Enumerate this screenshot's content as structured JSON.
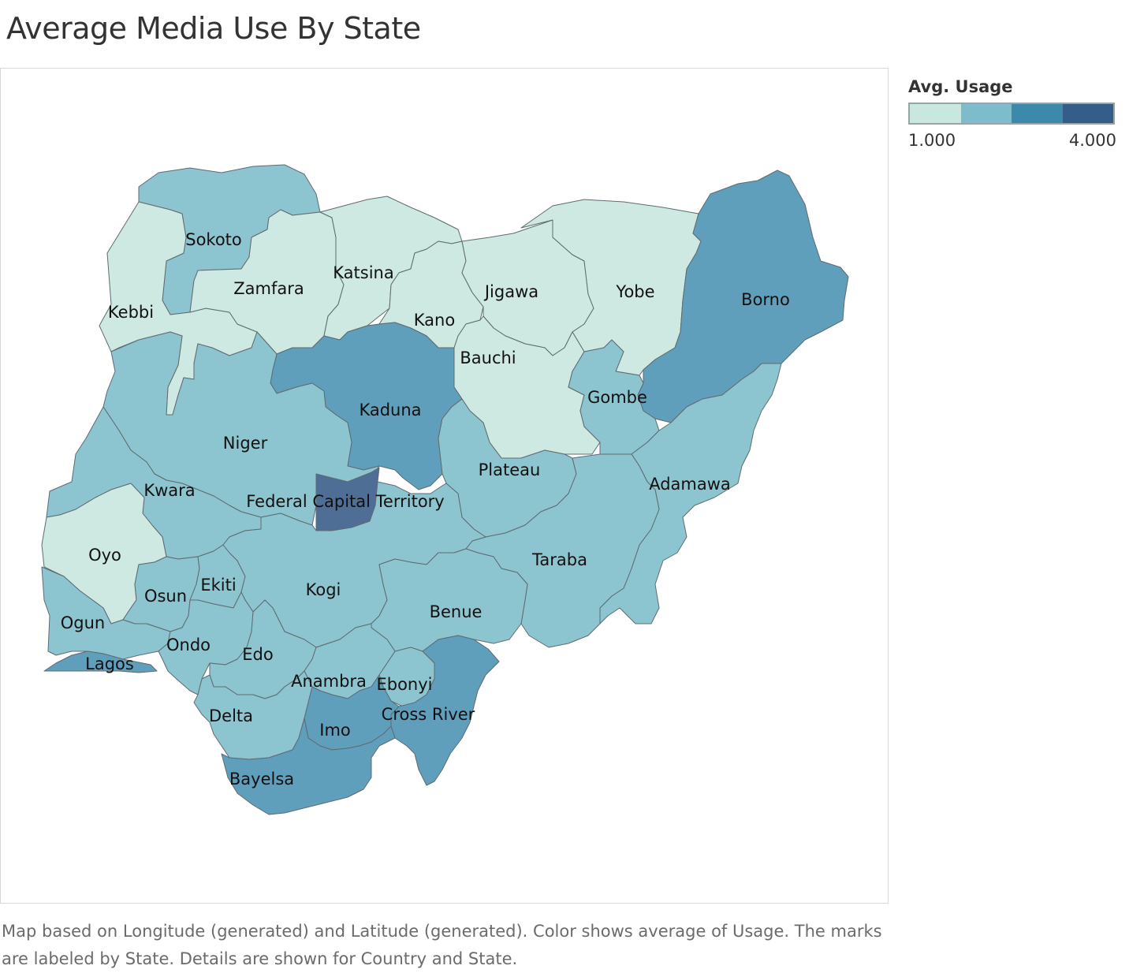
{
  "title": "Average Media Use By State",
  "legend": {
    "title": "Avg. Usage",
    "min_label": "1.000",
    "max_label": "4.000",
    "colors": [
      "#c8e7df",
      "#7dbccb",
      "#3c8aab",
      "#345d89"
    ]
  },
  "palette": {
    "level_1": "#cde9e1",
    "level_2": "#8cc5d0",
    "level_3": "#5f9fbc",
    "level_4": "#4f6e96",
    "border": "#5f6b70"
  },
  "states": [
    {
      "name": "Sokoto",
      "level": 2
    },
    {
      "name": "Kebbi",
      "level": 1
    },
    {
      "name": "Zamfara",
      "level": 1
    },
    {
      "name": "Katsina",
      "level": 1
    },
    {
      "name": "Kano",
      "level": 1
    },
    {
      "name": "Jigawa",
      "level": 1
    },
    {
      "name": "Yobe",
      "level": 1
    },
    {
      "name": "Borno",
      "level": 3
    },
    {
      "name": "Bauchi",
      "level": 1
    },
    {
      "name": "Gombe",
      "level": 2
    },
    {
      "name": "Kaduna",
      "level": 3
    },
    {
      "name": "Niger",
      "level": 2
    },
    {
      "name": "Kwara",
      "level": 2
    },
    {
      "name": "Federal Capital Territory",
      "level": 4
    },
    {
      "name": "Plateau",
      "level": 2
    },
    {
      "name": "Adamawa",
      "level": 2
    },
    {
      "name": "Taraba",
      "level": 2
    },
    {
      "name": "Oyo",
      "level": 1
    },
    {
      "name": "Osun",
      "level": 2
    },
    {
      "name": "Ekiti",
      "level": 2
    },
    {
      "name": "Kogi",
      "level": 2
    },
    {
      "name": "Benue",
      "level": 2
    },
    {
      "name": "Ogun",
      "level": 2
    },
    {
      "name": "Ondo",
      "level": 2
    },
    {
      "name": "Edo",
      "level": 2
    },
    {
      "name": "Lagos",
      "level": 3
    },
    {
      "name": "Anambra",
      "level": 2
    },
    {
      "name": "Ebonyi",
      "level": 2
    },
    {
      "name": "Cross River",
      "level": 3
    },
    {
      "name": "Delta",
      "level": 2
    },
    {
      "name": "Imo",
      "level": 3
    },
    {
      "name": "Bayelsa",
      "level": 3
    }
  ],
  "caption": "Map based on Longitude (generated) and Latitude (generated).  Color shows average of Usage.  The marks are labeled by State.  Details are shown for Country and State."
}
